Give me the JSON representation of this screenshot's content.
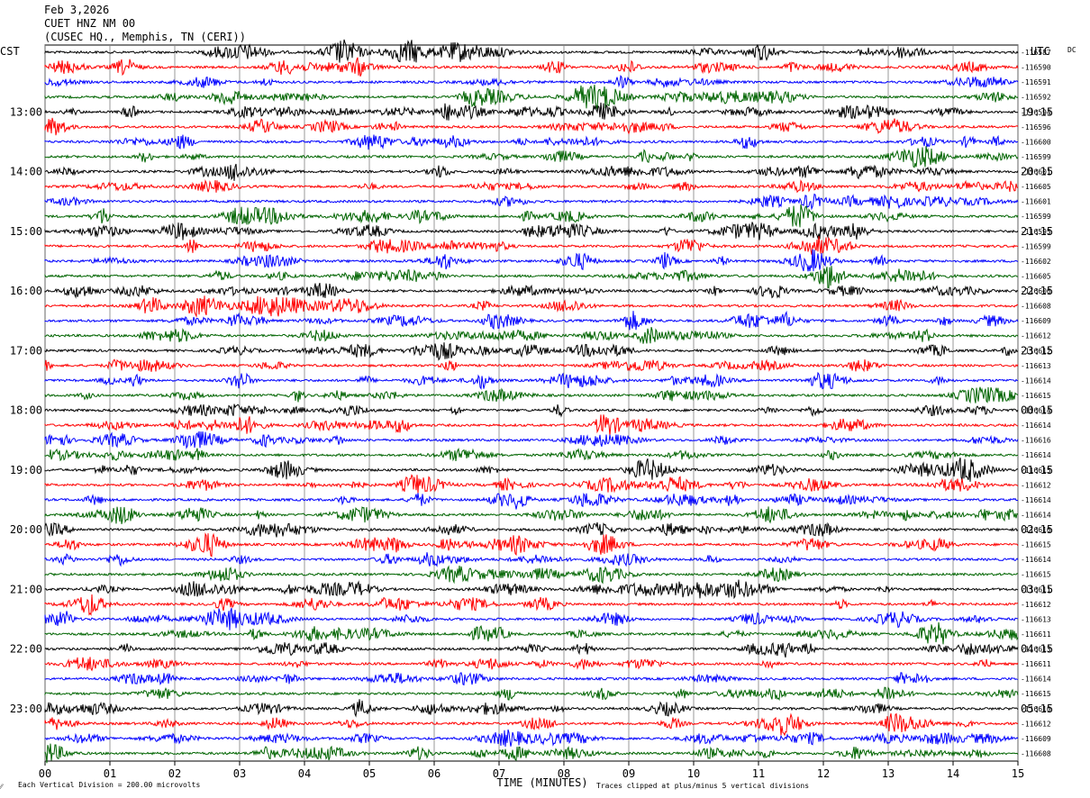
{
  "header": {
    "date": "Feb 3,2026",
    "station": "CUET HNZ NM 00",
    "location": "(CUSEC HQ., Memphis, TN (CERI))"
  },
  "chart_data": {
    "type": "line",
    "title": "Feb 3,2026 CUET HNZ NM 00 (CUSEC HQ., Memphis, TN (CERI))",
    "left_axis_label": "CST",
    "right_axis_label": "UTC",
    "dc_label": "DC",
    "xlabel": "TIME (MINUTES)",
    "xlim": [
      0,
      15
    ],
    "x_ticks": [
      "00",
      "01",
      "02",
      "03",
      "04",
      "05",
      "06",
      "07",
      "08",
      "09",
      "10",
      "11",
      "12",
      "13",
      "14",
      "15"
    ],
    "left_time_labels": [
      "13:00",
      "14:00",
      "15:00",
      "16:00",
      "17:00",
      "18:00",
      "19:00",
      "20:00",
      "21:00",
      "22:00",
      "23:00"
    ],
    "right_time_labels": [
      "19:15",
      "20:15",
      "21:15",
      "22:15",
      "23:15",
      "00:15",
      "01:15",
      "02:15",
      "03:15",
      "04:15",
      "05:15"
    ],
    "trace_colors": [
      "#000000",
      "#ff0000",
      "#0000ff",
      "#006400"
    ],
    "dc_offsets": [
      "-116587",
      "-116590",
      "-116591",
      "-116592",
      "-116594",
      "-116596",
      "-116600",
      "-116599",
      "-116601",
      "-116605",
      "-116601",
      "-116599",
      "-116595",
      "-116599",
      "-116602",
      "-116605",
      "-116606",
      "-116608",
      "-116609",
      "-116612",
      "-116612",
      "-116613",
      "-116614",
      "-116615",
      "-116614",
      "-116614",
      "-116616",
      "-116614",
      "-116615",
      "-116612",
      "-116614",
      "-116614",
      "-116616",
      "-116615",
      "-116614",
      "-116615",
      "-116611",
      "-116612",
      "-116613",
      "-116611",
      "-116613",
      "-116611",
      "-116614",
      "-116615",
      "-116610",
      "-116612",
      "-116609",
      "-116608"
    ],
    "footer_scale": "Each Vertical Division =  200.00 microvolts",
    "footer_clip": "Traces clipped at plus/minus 5 vertical divisions",
    "footer_mark": "⁄⁄"
  }
}
